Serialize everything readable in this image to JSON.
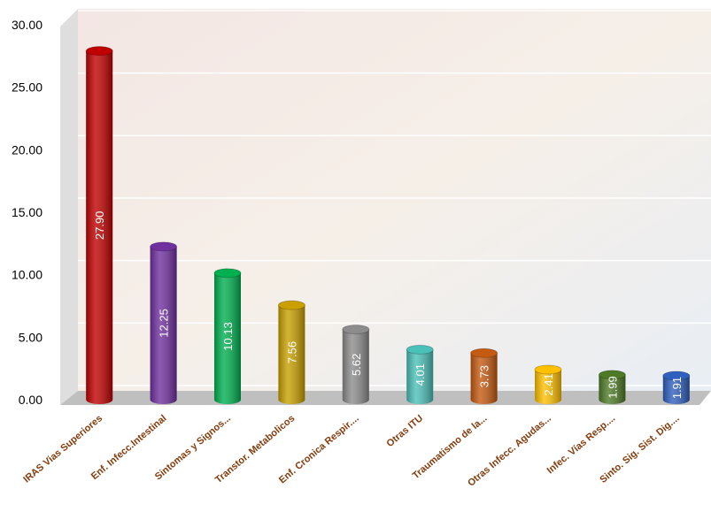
{
  "chart_data": {
    "type": "bar",
    "categories": [
      "IRAS Vias Superiores",
      "Enf. Infecc.Intestinal",
      "Sintomas y Signos...",
      "Transtor. Metabolicos",
      "Enf. Cronica Respir....",
      "Otras ITU",
      "Traumatismo de la...",
      "Otras Infecc. Agudas...",
      "Infec. Vías Resp....",
      "Sinto. Sig. Sist. Dig...."
    ],
    "values": [
      27.9,
      12.25,
      10.13,
      7.56,
      5.62,
      4.01,
      3.73,
      2.41,
      1.99,
      1.91
    ],
    "value_labels": [
      "27.90",
      "12.25",
      "10.13",
      "7.56",
      "5.62",
      "4.01",
      "3.73",
      "2.41",
      "1.99",
      "1.91"
    ],
    "colors": [
      "#c00000",
      "#7030a0",
      "#00b050",
      "#c9a000",
      "#8c8c8c",
      "#4bc0b8",
      "#c55a11",
      "#ffc000",
      "#4e7a27",
      "#2f5fbf"
    ],
    "ylim": [
      0,
      30
    ],
    "yticks": [
      {
        "value": 0,
        "label": "0.00"
      },
      {
        "value": 5,
        "label": "5.00"
      },
      {
        "value": 10,
        "label": "10.00"
      },
      {
        "value": 15,
        "label": "15.00"
      },
      {
        "value": 20,
        "label": "20.00"
      },
      {
        "value": 25,
        "label": "25.00"
      },
      {
        "value": 30,
        "label": "30.00"
      }
    ],
    "grid": true
  }
}
